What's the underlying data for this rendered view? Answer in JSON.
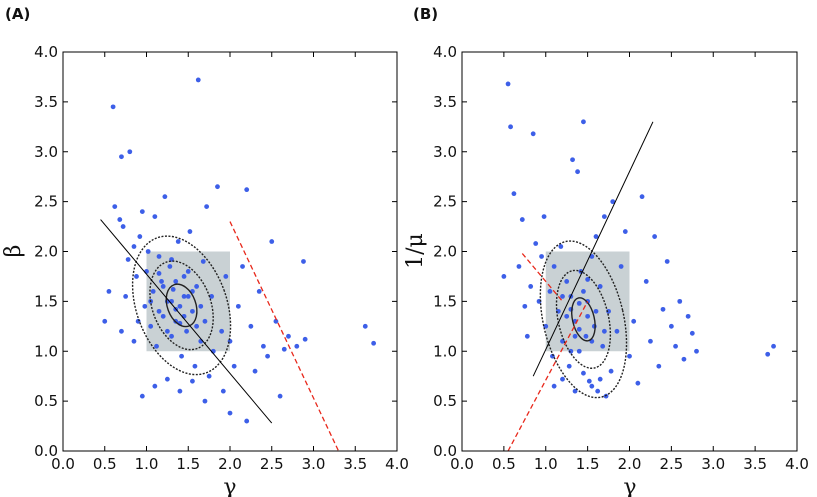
{
  "colors": {
    "point": "#3d5fe8",
    "box": "#c9d1d4",
    "ellipse": "#222222",
    "fit_line": "#000000",
    "dashed_line": "#e8281b"
  },
  "chart_data": [
    {
      "type": "scatter",
      "panel_label": "(A)",
      "xlabel": "γ",
      "ylabel": "β",
      "xlim": [
        0.0,
        4.0
      ],
      "ylim": [
        0.0,
        4.0
      ],
      "xticks": [
        "0.0",
        "0.5",
        "1.0",
        "1.5",
        "2.0",
        "2.5",
        "3.0",
        "3.5",
        "4.0"
      ],
      "yticks": [
        "0.0",
        "0.5",
        "1.0",
        "1.5",
        "2.0",
        "2.5",
        "3.0",
        "3.5",
        "4.0"
      ],
      "shaded_box": {
        "x": [
          1.0,
          2.0
        ],
        "y": [
          1.0,
          2.0
        ]
      },
      "ellipses": {
        "center": [
          1.42,
          1.46
        ],
        "semi_axes": [
          [
            0.17,
            0.22
          ],
          [
            0.35,
            0.46
          ],
          [
            0.54,
            0.72
          ]
        ],
        "rotation_deg": -20
      },
      "fit_line": {
        "from": [
          0.45,
          2.32
        ],
        "to": [
          2.5,
          0.28
        ]
      },
      "dashed_line": {
        "from": [
          2.0,
          2.3
        ],
        "to": [
          3.3,
          0.0
        ]
      },
      "points": [
        [
          0.5,
          1.3
        ],
        [
          0.55,
          1.6
        ],
        [
          0.6,
          3.45
        ],
        [
          0.62,
          2.45
        ],
        [
          0.68,
          2.32
        ],
        [
          0.7,
          2.95
        ],
        [
          0.72,
          2.25
        ],
        [
          0.8,
          3.0
        ],
        [
          0.78,
          1.92
        ],
        [
          0.85,
          2.05
        ],
        [
          0.88,
          1.75
        ],
        [
          0.92,
          2.15
        ],
        [
          0.95,
          2.4
        ],
        [
          0.98,
          1.45
        ],
        [
          1.0,
          1.8
        ],
        [
          1.02,
          2.0
        ],
        [
          1.05,
          1.25
        ],
        [
          1.08,
          1.6
        ],
        [
          1.1,
          2.35
        ],
        [
          1.12,
          1.05
        ],
        [
          1.15,
          1.95
        ],
        [
          1.18,
          1.7
        ],
        [
          1.2,
          1.35
        ],
        [
          1.22,
          2.55
        ],
        [
          1.25,
          1.5
        ],
        [
          1.28,
          1.85
        ],
        [
          1.3,
          1.15
        ],
        [
          1.32,
          1.62
        ],
        [
          1.35,
          1.3
        ],
        [
          1.38,
          2.1
        ],
        [
          1.4,
          1.45
        ],
        [
          1.42,
          0.95
        ],
        [
          1.45,
          1.75
        ],
        [
          1.48,
          1.2
        ],
        [
          1.5,
          1.55
        ],
        [
          1.52,
          2.2
        ],
        [
          1.55,
          1.4
        ],
        [
          1.58,
          0.85
        ],
        [
          1.6,
          1.65
        ],
        [
          1.62,
          3.72
        ],
        [
          1.65,
          1.1
        ],
        [
          1.68,
          1.9
        ],
        [
          1.7,
          1.3
        ],
        [
          1.72,
          2.45
        ],
        [
          1.75,
          0.75
        ],
        [
          1.78,
          1.55
        ],
        [
          1.8,
          1.0
        ],
        [
          1.85,
          2.65
        ],
        [
          1.9,
          1.2
        ],
        [
          1.92,
          0.6
        ],
        [
          1.95,
          1.75
        ],
        [
          2.0,
          1.1
        ],
        [
          2.05,
          0.85
        ],
        [
          2.1,
          1.45
        ],
        [
          2.15,
          1.85
        ],
        [
          2.2,
          2.62
        ],
        [
          2.25,
          1.25
        ],
        [
          2.3,
          0.8
        ],
        [
          2.35,
          1.6
        ],
        [
          2.4,
          1.05
        ],
        [
          2.45,
          0.95
        ],
        [
          2.5,
          2.1
        ],
        [
          2.55,
          1.3
        ],
        [
          2.6,
          0.55
        ],
        [
          2.65,
          1.02
        ],
        [
          2.7,
          1.15
        ],
        [
          2.8,
          1.05
        ],
        [
          2.88,
          1.9
        ],
        [
          2.9,
          1.12
        ],
        [
          3.62,
          1.25
        ],
        [
          3.72,
          1.08
        ],
        [
          0.95,
          0.55
        ],
        [
          1.1,
          0.65
        ],
        [
          1.25,
          0.72
        ],
        [
          1.4,
          0.6
        ],
        [
          1.55,
          0.7
        ],
        [
          1.7,
          0.5
        ],
        [
          2.0,
          0.38
        ],
        [
          2.2,
          0.3
        ],
        [
          1.15,
          1.4
        ],
        [
          1.3,
          1.5
        ],
        [
          1.45,
          1.35
        ],
        [
          1.35,
          1.7
        ],
        [
          1.5,
          1.8
        ],
        [
          1.6,
          1.25
        ],
        [
          1.25,
          1.2
        ],
        [
          1.45,
          1.55
        ],
        [
          1.55,
          1.6
        ],
        [
          1.2,
          1.65
        ],
        [
          1.35,
          1.42
        ],
        [
          1.4,
          1.28
        ],
        [
          1.65,
          1.45
        ],
        [
          1.05,
          1.5
        ],
        [
          1.15,
          1.78
        ],
        [
          1.3,
          1.92
        ],
        [
          0.9,
          1.3
        ],
        [
          0.85,
          1.1
        ],
        [
          0.75,
          1.55
        ],
        [
          0.7,
          1.2
        ]
      ]
    },
    {
      "type": "scatter",
      "panel_label": "(B)",
      "xlabel": "γ",
      "ylabel": "1/μ",
      "xlim": [
        0.0,
        4.0
      ],
      "ylim": [
        0.0,
        4.0
      ],
      "xticks": [
        "0.0",
        "0.5",
        "1.0",
        "1.5",
        "2.0",
        "2.5",
        "3.0",
        "3.5",
        "4.0"
      ],
      "yticks": [
        "0.0",
        "0.5",
        "1.0",
        "1.5",
        "2.0",
        "2.5",
        "3.0",
        "3.5",
        "4.0"
      ],
      "shaded_box": {
        "x": [
          1.0,
          2.0
        ],
        "y": [
          1.0,
          2.0
        ]
      },
      "ellipses": {
        "center": [
          1.45,
          1.32
        ],
        "semi_axes": [
          [
            0.13,
            0.22
          ],
          [
            0.3,
            0.5
          ],
          [
            0.48,
            0.8
          ]
        ],
        "rotation_deg": -13
      },
      "fit_line": {
        "from": [
          0.85,
          0.75
        ],
        "to": [
          2.28,
          3.3
        ]
      },
      "dashed_line": {
        "from": [
          0.55,
          0.0
        ],
        "to": [
          1.5,
          1.5
        ],
        "extra_from": [
          0.72,
          1.98
        ],
        "extra_to": [
          1.2,
          1.5
        ]
      },
      "points": [
        [
          0.5,
          1.75
        ],
        [
          0.55,
          3.68
        ],
        [
          0.58,
          3.25
        ],
        [
          0.62,
          2.58
        ],
        [
          0.68,
          1.85
        ],
        [
          0.72,
          2.32
        ],
        [
          0.75,
          1.45
        ],
        [
          0.78,
          1.15
        ],
        [
          0.82,
          1.65
        ],
        [
          0.85,
          3.18
        ],
        [
          0.88,
          2.08
        ],
        [
          0.92,
          1.5
        ],
        [
          0.95,
          1.95
        ],
        [
          0.98,
          2.35
        ],
        [
          1.0,
          1.25
        ],
        [
          1.05,
          1.6
        ],
        [
          1.08,
          0.95
        ],
        [
          1.1,
          1.85
        ],
        [
          1.15,
          1.4
        ],
        [
          1.18,
          2.05
        ],
        [
          1.2,
          1.1
        ],
        [
          1.25,
          1.7
        ],
        [
          1.28,
          0.85
        ],
        [
          1.3,
          1.55
        ],
        [
          1.32,
          2.92
        ],
        [
          1.35,
          1.3
        ],
        [
          1.38,
          2.8
        ],
        [
          1.4,
          1.0
        ],
        [
          1.42,
          1.8
        ],
        [
          1.45,
          3.3
        ],
        [
          1.48,
          1.15
        ],
        [
          1.5,
          1.5
        ],
        [
          1.52,
          0.7
        ],
        [
          1.55,
          1.95
        ],
        [
          1.58,
          1.25
        ],
        [
          1.6,
          2.15
        ],
        [
          1.62,
          0.6
        ],
        [
          1.65,
          1.65
        ],
        [
          1.68,
          1.05
        ],
        [
          1.7,
          2.35
        ],
        [
          1.72,
          0.55
        ],
        [
          1.75,
          1.4
        ],
        [
          1.78,
          0.8
        ],
        [
          1.8,
          2.5
        ],
        [
          1.85,
          1.2
        ],
        [
          1.9,
          1.85
        ],
        [
          1.95,
          2.2
        ],
        [
          2.0,
          0.95
        ],
        [
          2.05,
          1.3
        ],
        [
          2.1,
          0.68
        ],
        [
          2.15,
          2.55
        ],
        [
          2.2,
          1.7
        ],
        [
          2.25,
          1.1
        ],
        [
          2.3,
          2.15
        ],
        [
          2.35,
          0.85
        ],
        [
          2.4,
          1.42
        ],
        [
          2.45,
          1.9
        ],
        [
          2.5,
          1.25
        ],
        [
          2.55,
          1.05
        ],
        [
          2.6,
          1.5
        ],
        [
          2.65,
          0.92
        ],
        [
          2.7,
          1.35
        ],
        [
          2.75,
          1.18
        ],
        [
          2.8,
          1.0
        ],
        [
          3.65,
          0.97
        ],
        [
          3.72,
          1.05
        ],
        [
          1.1,
          0.65
        ],
        [
          1.2,
          0.72
        ],
        [
          1.35,
          0.6
        ],
        [
          1.45,
          0.78
        ],
        [
          1.55,
          0.65
        ],
        [
          1.65,
          0.72
        ],
        [
          1.3,
          1.42
        ],
        [
          1.4,
          1.22
        ],
        [
          1.5,
          1.35
        ],
        [
          1.45,
          1.6
        ],
        [
          1.35,
          1.15
        ],
        [
          1.55,
          1.1
        ],
        [
          1.25,
          1.35
        ],
        [
          1.4,
          1.48
        ],
        [
          1.6,
          1.4
        ],
        [
          1.3,
          1.0
        ],
        [
          1.2,
          1.55
        ],
        [
          1.5,
          1.72
        ],
        [
          1.7,
          1.2
        ]
      ]
    }
  ]
}
